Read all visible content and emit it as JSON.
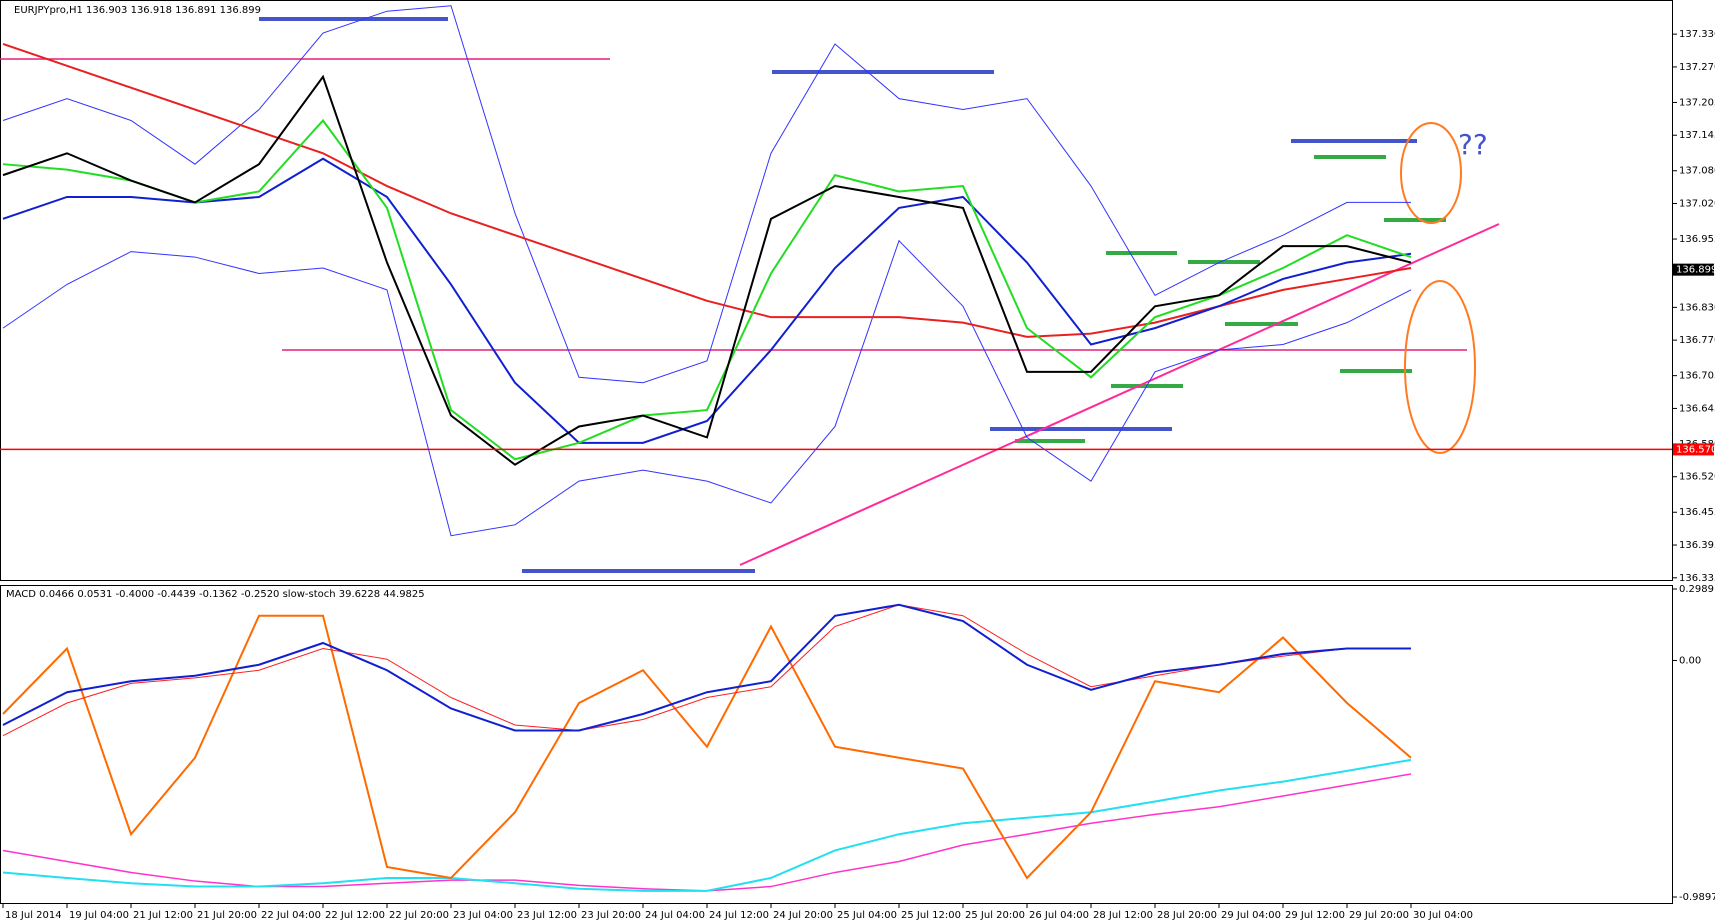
{
  "chart_data": [
    {
      "type": "line",
      "title": "EURJPYpro,H1  136.903 136.918 136.891 136.899",
      "annotation": "??",
      "ylim": [
        136.331,
        137.387
      ],
      "yticks": [
        {
          "value": 137.33,
          "label": "137.330"
        },
        {
          "value": 137.27,
          "label": "137.270"
        },
        137.205,
        137.145,
        {
          "value": 137.08,
          "label": "137.080"
        },
        {
          "value": 137.02,
          "label": "137.020"
        },
        136.955,
        136.895,
        {
          "value": 136.83,
          "label": "136.830"
        },
        {
          "value": 136.77,
          "label": "136.770"
        },
        136.705,
        136.645,
        {
          "value": 136.58,
          "label": "136.580"
        },
        {
          "value": 136.52,
          "label": "136.520"
        },
        136.455,
        136.395,
        136.335
      ],
      "price_markers": [
        {
          "value": 136.899,
          "color": "#000000"
        },
        {
          "value": 136.57,
          "label": "136.570",
          "color": "#ff0000",
          "line": true
        }
      ],
      "series": [
        {
          "color": "#3333ff",
          "width": 1,
          "values": [
            137.172,
            137.212,
            137.172,
            137.092,
            137.192,
            137.332,
            137.372,
            137.382,
            137.002,
            136.702,
            136.692,
            136.732,
            137.112,
            137.312,
            137.212,
            137.192,
            137.212,
            137.052,
            136.852,
            136.912,
            136.962,
            137.022,
            137.022
          ]
        },
        {
          "color": "#3333ff",
          "width": 1,
          "values": [
            136.792,
            136.872,
            136.932,
            136.922,
            136.892,
            136.902,
            136.862,
            136.412,
            136.432,
            136.512,
            136.532,
            136.512,
            136.472,
            136.612,
            136.952,
            136.832,
            136.592,
            136.512,
            136.712,
            136.752,
            136.762,
            136.802,
            136.862
          ]
        },
        {
          "color": "#e82020",
          "width": 2,
          "values": [
            137.312,
            137.272,
            137.232,
            137.192,
            137.152,
            137.112,
            137.052,
            137.002,
            136.962,
            136.922,
            136.882,
            136.842,
            136.812,
            136.812,
            136.812,
            136.802,
            136.776,
            136.782,
            136.802,
            136.832,
            136.862,
            136.882,
            136.902
          ]
        },
        {
          "color": "#1020d0",
          "width": 2,
          "values": [
            136.992,
            137.032,
            137.032,
            137.022,
            137.032,
            137.102,
            137.032,
            136.872,
            136.692,
            136.582,
            136.582,
            136.622,
            136.752,
            136.902,
            137.012,
            137.032,
            136.912,
            136.762,
            136.792,
            136.832,
            136.882,
            136.912,
            136.928
          ]
        },
        {
          "color": "#22dd22",
          "width": 2,
          "values": [
            137.092,
            137.082,
            137.062,
            137.022,
            137.042,
            137.172,
            137.012,
            136.642,
            136.552,
            136.582,
            136.632,
            136.642,
            136.892,
            137.072,
            137.042,
            137.052,
            136.792,
            136.702,
            136.812,
            136.852,
            136.902,
            136.962,
            136.922
          ]
        },
        {
          "color": "#000000",
          "width": 2,
          "values": [
            137.072,
            137.112,
            137.062,
            137.022,
            137.092,
            137.252,
            136.912,
            136.632,
            136.542,
            136.612,
            136.632,
            136.592,
            136.992,
            137.052,
            137.032,
            137.012,
            136.712,
            136.712,
            136.832,
            136.852,
            136.942,
            136.942,
            136.912
          ]
        }
      ]
    },
    {
      "type": "line",
      "title": "MACD 0.0466 0.0531 -0.4000 -0.4439 -0.1362 -0.2520  slow-stoch 39.6228 44.9825",
      "ylim": [
        -1.0148,
        0.3115
      ],
      "yticks": [
        0.2989,
        {
          "value": 0,
          "label": "0.00"
        },
        -0.9897
      ],
      "categories": [
        "18 Jul 2014",
        "19 Jul 04:00",
        "21 Jul 12:00",
        "21 Jul 20:00",
        "22 Jul 04:00",
        "22 Jul 12:00",
        "22 Jul 20:00",
        "23 Jul 04:00",
        "23 Jul 12:00",
        "23 Jul 20:00",
        "24 Jul 04:00",
        "24 Jul 12:00",
        "24 Jul 20:00",
        "25 Jul 04:00",
        "25 Jul 12:00",
        "25 Jul 20:00",
        "26 Jul 04:00",
        "28 Jul 12:00",
        "28 Jul 20:00",
        "29 Jul 04:00",
        "29 Jul 12:00",
        "29 Jul 20:00",
        "30 Jul 04:00"
      ],
      "series": [
        {
          "color": "#ff33cc",
          "width": 1.5,
          "values": [
            -0.795,
            -0.841,
            -0.887,
            -0.923,
            -0.946,
            -0.946,
            -0.932,
            -0.919,
            -0.919,
            -0.941,
            -0.955,
            -0.964,
            -0.946,
            -0.887,
            -0.841,
            -0.772,
            -0.727,
            -0.681,
            -0.644,
            -0.612,
            -0.567,
            -0.521,
            -0.475
          ]
        },
        {
          "color": "#22e0f0",
          "width": 2,
          "values": [
            -0.887,
            -0.91,
            -0.932,
            -0.946,
            -0.946,
            -0.932,
            -0.91,
            -0.91,
            -0.932,
            -0.955,
            -0.964,
            -0.964,
            -0.91,
            -0.795,
            -0.727,
            -0.681,
            -0.658,
            -0.635,
            -0.59,
            -0.544,
            -0.507,
            -0.462,
            -0.416
          ]
        },
        {
          "color": "#ff6a00",
          "width": 2,
          "values": [
            -0.224,
            0.05,
            -0.727,
            -0.407,
            0.187,
            0.187,
            -0.864,
            -0.91,
            -0.635,
            -0.178,
            -0.041,
            -0.361,
            0.142,
            -0.361,
            -0.407,
            -0.452,
            -0.91,
            -0.635,
            -0.087,
            -0.133,
            0.096,
            -0.178,
            -0.407
          ]
        },
        {
          "color": "#ff2020",
          "width": 1,
          "values": [
            -0.315,
            -0.178,
            -0.096,
            -0.073,
            -0.041,
            0.05,
            0.005,
            -0.155,
            -0.27,
            -0.293,
            -0.247,
            -0.155,
            -0.11,
            0.142,
            0.233,
            0.187,
            0.027,
            -0.11,
            -0.064,
            -0.018,
            0.018,
            0.05,
            0.05
          ]
        },
        {
          "color": "#1020d0",
          "width": 2,
          "values": [
            -0.27,
            -0.133,
            -0.087,
            -0.064,
            -0.018,
            0.073,
            -0.041,
            -0.201,
            -0.293,
            -0.293,
            -0.224,
            -0.133,
            -0.087,
            0.187,
            0.233,
            0.165,
            -0.018,
            -0.123,
            -0.05,
            -0.018,
            0.027,
            0.05,
            0.05
          ]
        }
      ]
    }
  ]
}
